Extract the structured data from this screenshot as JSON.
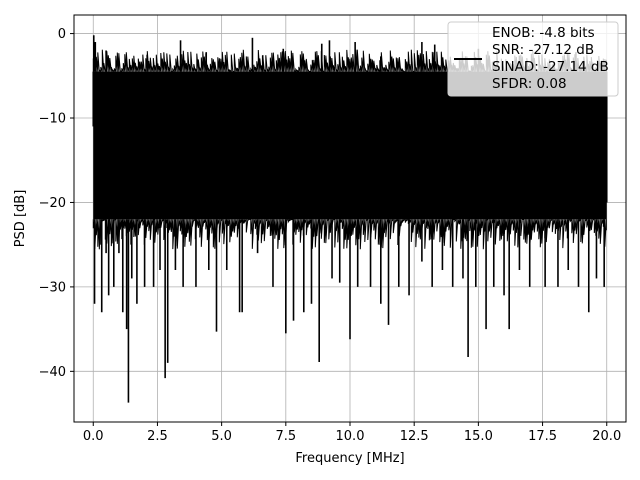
{
  "chart_data": {
    "type": "line",
    "title": "",
    "xlabel": "Frequency [MHz]",
    "ylabel": "PSD [dB]",
    "xlim": [
      -0.75,
      20.75
    ],
    "ylim": [
      -46,
      2.2
    ],
    "xticks": [
      0.0,
      2.5,
      5.0,
      7.5,
      10.0,
      12.5,
      15.0,
      17.5,
      20.0
    ],
    "xtick_labels": [
      "0.0",
      "2.5",
      "5.0",
      "7.5",
      "10.0",
      "12.5",
      "15.0",
      "17.5",
      "20.0"
    ],
    "yticks": [
      0,
      -10,
      -20,
      -30,
      -40
    ],
    "ytick_labels": [
      "0",
      "−10",
      "−20",
      "−30",
      "−40"
    ],
    "grid": true,
    "legend_position": "top-right",
    "series": [
      {
        "color": "#000000",
        "band": {
          "upper_db": -4.5,
          "lower_db": -22
        },
        "x_range": [
          0,
          20
        ],
        "points": [
          [
            0.0,
            -11
          ],
          [
            0.02,
            -0.2
          ],
          [
            0.05,
            -32
          ],
          [
            0.08,
            -1
          ],
          [
            0.12,
            -20
          ],
          [
            0.2,
            -8
          ],
          [
            0.3,
            -25
          ],
          [
            0.33,
            -33
          ],
          [
            0.5,
            -26
          ],
          [
            0.6,
            -31
          ],
          [
            0.8,
            -30
          ],
          [
            1.0,
            -26
          ],
          [
            1.15,
            -33
          ],
          [
            1.3,
            -35
          ],
          [
            1.37,
            -43.7
          ],
          [
            1.5,
            -29
          ],
          [
            1.7,
            -32
          ],
          [
            2.0,
            -30
          ],
          [
            2.35,
            -30
          ],
          [
            2.6,
            -28
          ],
          [
            2.8,
            -40.8
          ],
          [
            2.9,
            -39
          ],
          [
            3.2,
            -28
          ],
          [
            3.5,
            -30
          ],
          [
            4.0,
            -30
          ],
          [
            4.5,
            -28
          ],
          [
            4.8,
            -35.3
          ],
          [
            5.2,
            -28
          ],
          [
            5.7,
            -33
          ],
          [
            5.8,
            -33
          ],
          [
            6.4,
            -26
          ],
          [
            7.0,
            -30
          ],
          [
            7.5,
            -35.5
          ],
          [
            7.8,
            -34
          ],
          [
            8.2,
            -33
          ],
          [
            8.5,
            -32
          ],
          [
            8.8,
            -38.9
          ],
          [
            9.3,
            -29
          ],
          [
            9.6,
            -29.5
          ],
          [
            10.0,
            -36.2
          ],
          [
            10.3,
            -30
          ],
          [
            10.8,
            -30
          ],
          [
            11.2,
            -32
          ],
          [
            11.5,
            -34.5
          ],
          [
            11.9,
            -30
          ],
          [
            12.3,
            -31
          ],
          [
            12.8,
            -27
          ],
          [
            13.2,
            -30
          ],
          [
            13.6,
            -28
          ],
          [
            14.0,
            -30
          ],
          [
            14.4,
            -29
          ],
          [
            14.6,
            -38.3
          ],
          [
            14.9,
            -30
          ],
          [
            15.3,
            -35
          ],
          [
            15.6,
            -30
          ],
          [
            16.0,
            -31
          ],
          [
            16.2,
            -35
          ],
          [
            16.6,
            -28
          ],
          [
            17.0,
            -30
          ],
          [
            17.6,
            -30
          ],
          [
            18.1,
            -30
          ],
          [
            18.5,
            -28
          ],
          [
            18.9,
            -30
          ],
          [
            19.3,
            -33
          ],
          [
            19.6,
            -29
          ],
          [
            19.9,
            -30
          ],
          [
            20.0,
            -20
          ],
          [
            3.4,
            -0.8
          ],
          [
            6.2,
            -0.5
          ],
          [
            8.9,
            -1.2
          ],
          [
            9.2,
            -0.8
          ],
          [
            10.2,
            -1
          ],
          [
            12.8,
            -1
          ],
          [
            15.0,
            -1.8
          ],
          [
            2.1,
            -2.5
          ],
          [
            4.4,
            -2.2
          ],
          [
            6.6,
            -2.6
          ],
          [
            7.4,
            -1.8
          ],
          [
            13.3,
            -1.3
          ],
          [
            16.6,
            -2.6
          ],
          [
            18.8,
            -2.2
          ],
          [
            19.2,
            -4
          ],
          [
            11.2,
            -2.7
          ],
          [
            0.5,
            -2
          ]
        ]
      }
    ],
    "legend": {
      "lines": [
        "ENOB: -4.8 bits",
        "SNR: -27.12 dB",
        "SINAD: -27.14 dB",
        "SFDR: 0.08"
      ],
      "line_color": "#000000"
    }
  }
}
